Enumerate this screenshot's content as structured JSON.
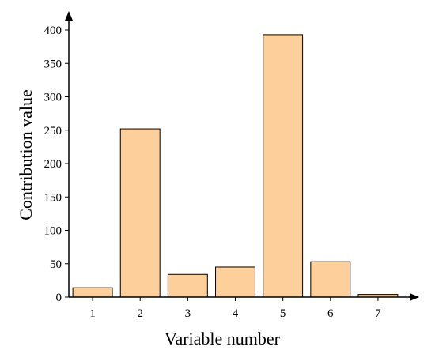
{
  "chart_data": {
    "type": "bar",
    "categories": [
      "1",
      "2",
      "3",
      "4",
      "5",
      "6",
      "7"
    ],
    "values": [
      14,
      252,
      34,
      45,
      393,
      53,
      4
    ],
    "title": "",
    "xlabel": "Variable number",
    "ylabel": "Contribution value",
    "ylim": [
      0,
      420
    ],
    "yticks": [
      0,
      50,
      100,
      150,
      200,
      250,
      300,
      350,
      400
    ],
    "grid": false,
    "legend": "none",
    "bar_color": "#fdcf9a",
    "bar_edge_color": "#000000"
  }
}
